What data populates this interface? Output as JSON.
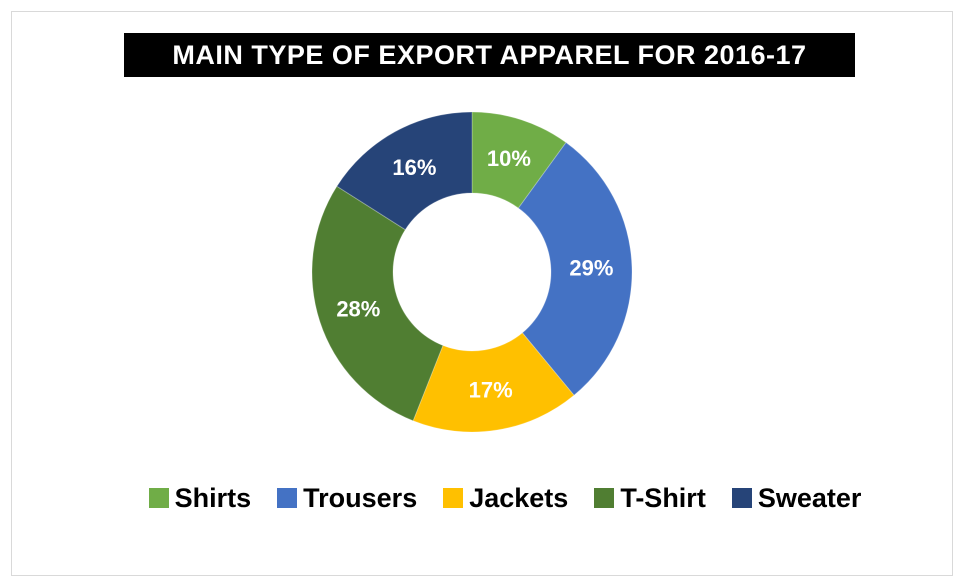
{
  "chart_data": {
    "type": "pie",
    "variant": "doughnut",
    "title": "MAIN TYPE OF EXPORT APPAREL FOR 2016-17",
    "categories": [
      "Shirts",
      "Trousers",
      "Jackets",
      "T-Shirt",
      "Sweater"
    ],
    "values": [
      10,
      29,
      17,
      28,
      16
    ],
    "unit": "%",
    "data_labels": [
      "10%",
      "29%",
      "17%",
      "28%",
      "16%"
    ],
    "colors": [
      "#70ad47",
      "#4472c4",
      "#ffc000",
      "#507e32",
      "#264478"
    ],
    "legend_position": "bottom"
  }
}
